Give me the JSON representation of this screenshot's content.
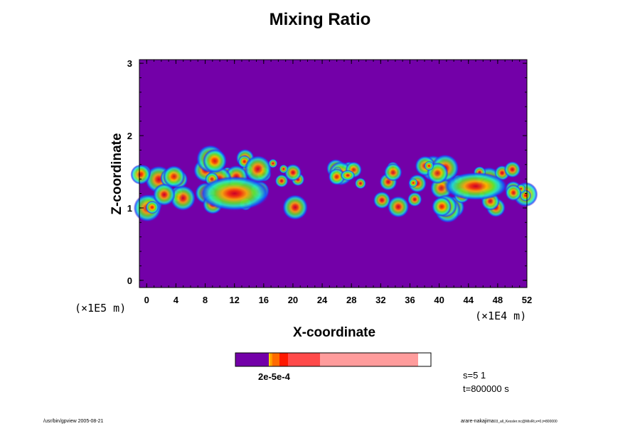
{
  "chart_data": {
    "type": "heatmap",
    "title": "Mixing Ratio",
    "xlabel": "X-coordinate",
    "ylabel": "Z-coordinate",
    "x_unit": "(×1E4 m)",
    "y_unit": "(×1E5 m)",
    "xlim": [
      -1,
      52
    ],
    "ylim": [
      -0.1,
      3.05
    ],
    "x_ticks": [
      "0",
      "4",
      "8",
      "12",
      "16",
      "20",
      "24",
      "28",
      "32",
      "36",
      "40",
      "44",
      "48",
      "52"
    ],
    "y_ticks": [
      "0",
      "1",
      "2",
      "3"
    ],
    "background_color": "#7300a8",
    "cloud_regions": [
      {
        "x": [
          -1,
          21
        ],
        "z": [
          0.95,
          1.75
        ],
        "peak_x": 12,
        "peak_z": 1.2
      },
      {
        "x": [
          25.5,
          30
        ],
        "z": [
          1.3,
          1.55
        ],
        "peak_x": 27.5,
        "peak_z": 1.45
      },
      {
        "x": [
          32,
          52
        ],
        "z": [
          0.95,
          1.6
        ],
        "peak_x": 45,
        "peak_z": 1.3
      }
    ],
    "colorbar": {
      "colors": [
        "#7300a8",
        "#ffd400",
        "#ff9a00",
        "#ff6a00",
        "#ff1800",
        "#ff4a4a",
        "#ff9c9c"
      ],
      "label": "2e-5e-4"
    },
    "info": {
      "s": "s=5 1",
      "t": "t=800000 s"
    }
  },
  "footer": {
    "left": "/usr/bin/gpview 2005-08-21",
    "right": "arare-nakajima",
    "right_small": "03_all_Kessler.nc@MixRt,x=0,t=800000"
  }
}
